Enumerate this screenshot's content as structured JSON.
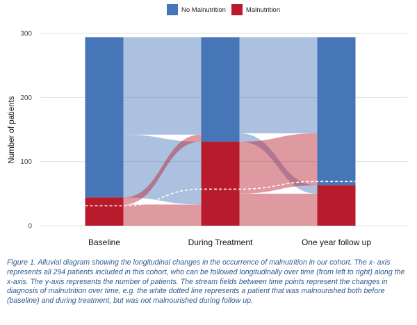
{
  "colors": {
    "no_malnutrition": "#4675b8",
    "malnutrition": "#b81c2c",
    "grid": "#e0e0e0",
    "caption": "#2e5a93"
  },
  "chart_data": {
    "type": "alluvial",
    "ylabel": "Number of patients",
    "xlabel": "",
    "ylim": [
      0,
      300
    ],
    "yticks": [
      0,
      100,
      200,
      300
    ],
    "grid": true,
    "legend_position": "top",
    "categories": [
      "Baseline",
      "During Treatment",
      "One year follow up"
    ],
    "series": [
      {
        "name": "No Malnutrition",
        "values": [
          250,
          163,
          231
        ]
      },
      {
        "name": "Malnutrition",
        "values": [
          44,
          131,
          63
        ]
      }
    ],
    "flows": [
      {
        "from": "Baseline",
        "to": "During Treatment",
        "from_status": "No Malnutrition",
        "to_status": "No Malnutrition",
        "count": 152
      },
      {
        "from": "Baseline",
        "to": "During Treatment",
        "from_status": "No Malnutrition",
        "to_status": "Malnutrition",
        "count": 98
      },
      {
        "from": "Baseline",
        "to": "During Treatment",
        "from_status": "Malnutrition",
        "to_status": "No Malnutrition",
        "count": 11
      },
      {
        "from": "Baseline",
        "to": "During Treatment",
        "from_status": "Malnutrition",
        "to_status": "Malnutrition",
        "count": 33
      },
      {
        "from": "During Treatment",
        "to": "One year follow up",
        "from_status": "No Malnutrition",
        "to_status": "No Malnutrition",
        "count": 150
      },
      {
        "from": "During Treatment",
        "to": "One year follow up",
        "from_status": "No Malnutrition",
        "to_status": "Malnutrition",
        "count": 13
      },
      {
        "from": "During Treatment",
        "to": "One year follow up",
        "from_status": "Malnutrition",
        "to_status": "No Malnutrition",
        "count": 81
      },
      {
        "from": "During Treatment",
        "to": "One year follow up",
        "from_status": "Malnutrition",
        "to_status": "Malnutrition",
        "count": 50
      }
    ],
    "highlight_path": [
      31,
      57,
      69
    ]
  },
  "caption": "Figure 1. Alluvial diagram showing the longitudinal changes in the occurrence of malnutrition in our cohort. The x- axis represents all 294 patients included in this cohort, who can be followed longitudinally over time (from left to right) along the x-axis. The y-axis represents the number of patients. The stream fields between time points represent the changes in diagnosis of malnutrition over time, e.g. the white dotted line represents a patient that was malnourished both before (baseline) and during treatment, but was not malnourished during follow up."
}
